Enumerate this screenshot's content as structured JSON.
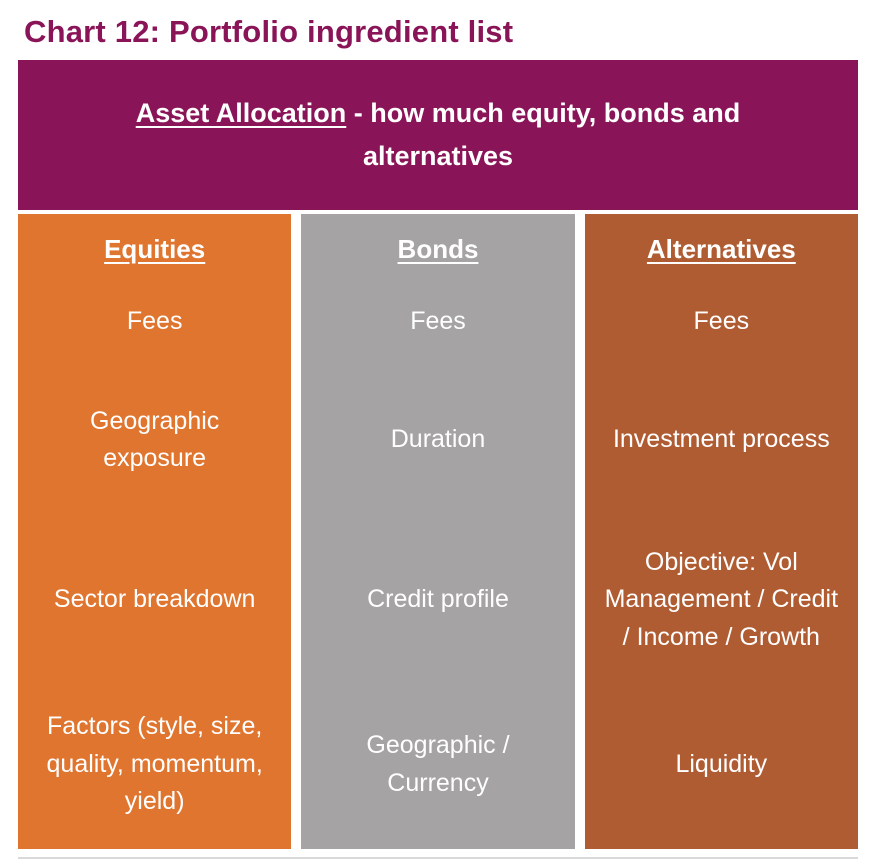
{
  "title": "Chart 12: Portfolio ingredient list",
  "header": {
    "underlined": "Asset Allocation",
    "rest": " - how much equity, bonds and alternatives"
  },
  "columns": [
    {
      "name": "Equities",
      "items": [
        "Fees",
        "Geographic exposure",
        "Sector breakdown",
        "Factors (style, size, quality, momentum, yield)"
      ]
    },
    {
      "name": "Bonds",
      "items": [
        "Fees",
        "Duration",
        "Credit profile",
        "Geographic / Currency"
      ]
    },
    {
      "name": "Alternatives",
      "items": [
        "Fees",
        "Investment process",
        "Objective: Vol Management / Credit / Income / Growth",
        "Liquidity"
      ]
    }
  ],
  "colors": {
    "title_text": "#8A1458",
    "header_bg": "#8A1458",
    "equities_bg": "#E0752F",
    "bonds_bg": "#A5A3A4",
    "alternatives_bg": "#B05C33",
    "cell_text": "#FFFFFF"
  }
}
